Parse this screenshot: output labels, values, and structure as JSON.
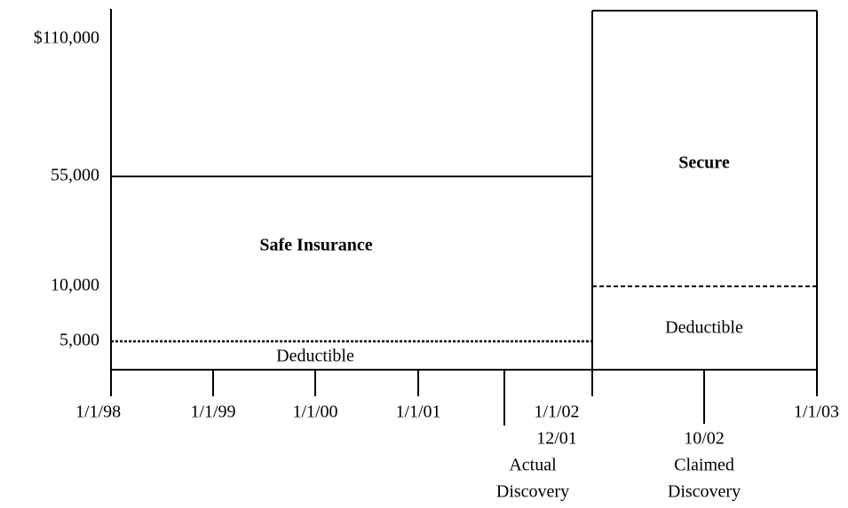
{
  "y_axis": {
    "labels": [
      "$110,000",
      "55,000",
      "10,000",
      "5,000"
    ]
  },
  "x_axis": {
    "labels": [
      "1/1/98",
      "1/1/99",
      "1/1/00",
      "1/1/01",
      "1/1/02",
      "1/1/03"
    ]
  },
  "boxes": [
    {
      "label": "Safe Insurance",
      "deductible": "Deductible"
    },
    {
      "label": "Secure",
      "deductible": "Deductible"
    }
  ],
  "annotations": [
    {
      "date": "12/01",
      "lines": [
        "Actual",
        "Discovery"
      ]
    },
    {
      "date": "10/02",
      "lines": [
        "Claimed",
        "Discovery"
      ]
    }
  ]
}
